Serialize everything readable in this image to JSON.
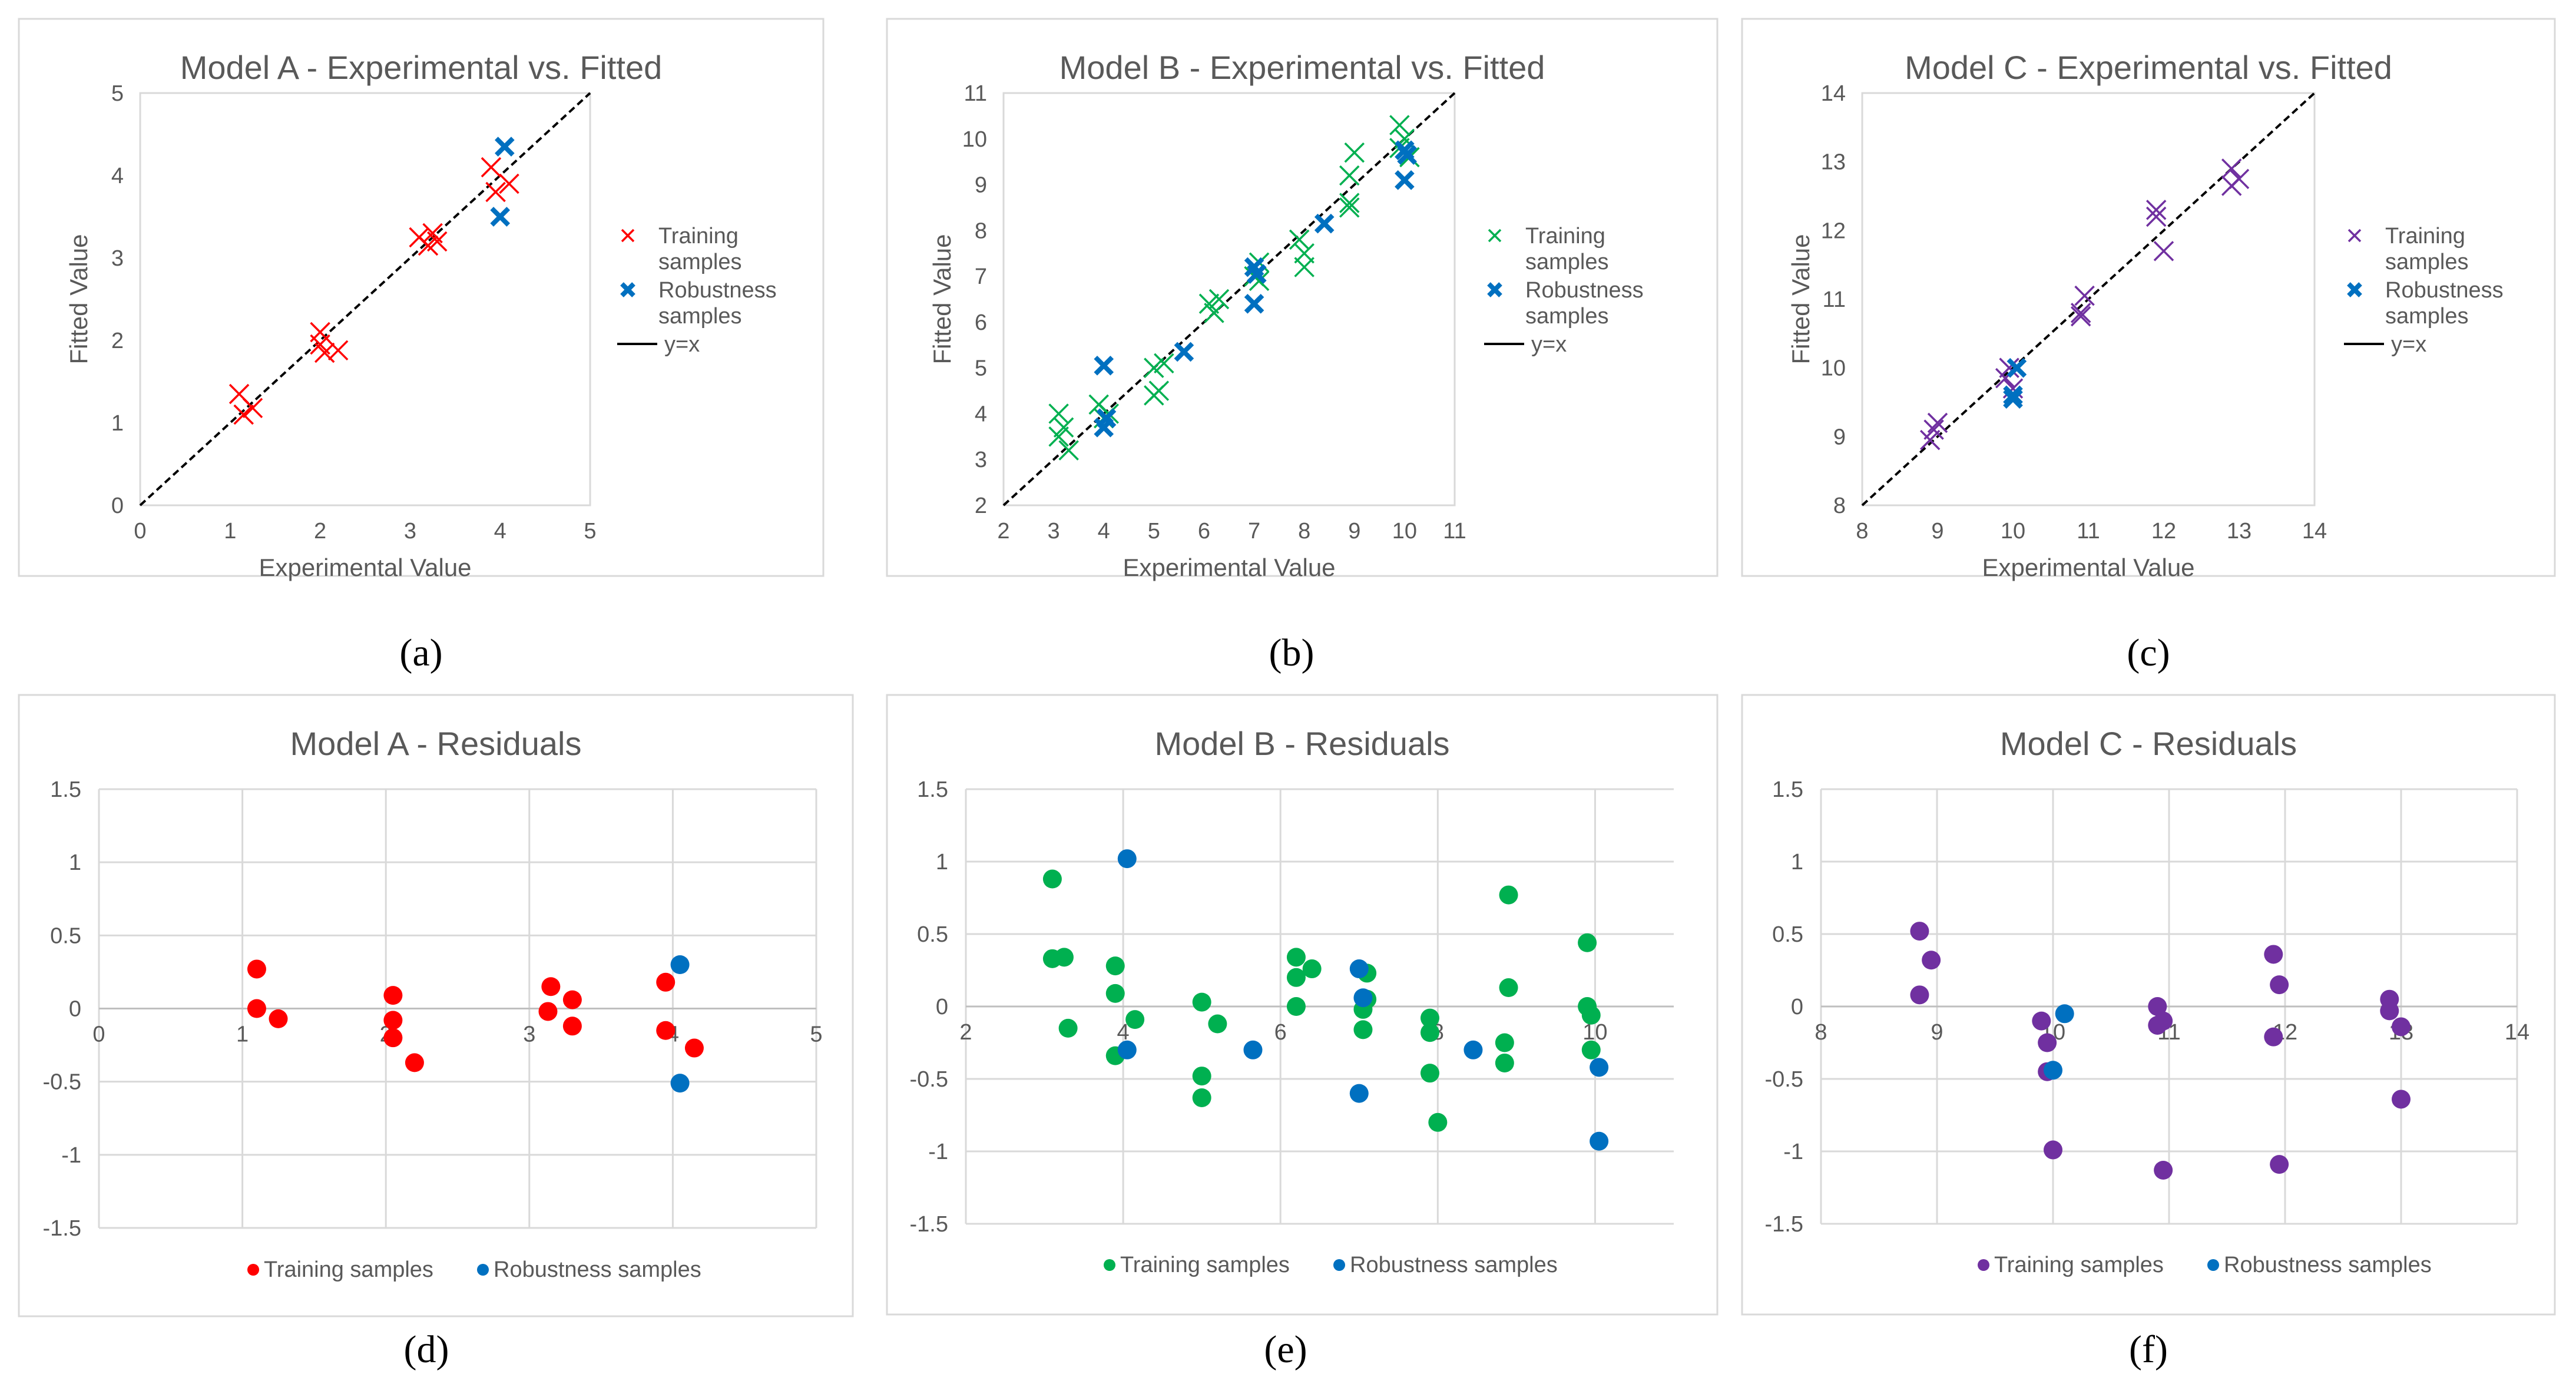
{
  "colors": {
    "model_a": "#FF0000",
    "model_b": "#00B050",
    "model_c": "#7030A0",
    "robustness": "#0070C0",
    "fit_line": "#000000",
    "text": "#595959",
    "grid": "#D9D9D9"
  },
  "chart_data": [
    {
      "id": "a",
      "panel_label": "(a)",
      "type": "scatter",
      "title": "Model A - Experimental vs. Fitted",
      "xlabel": "Experimental Value",
      "ylabel": "Fitted Value",
      "xlim": [
        0,
        5
      ],
      "ylim": [
        0,
        5
      ],
      "xticks": [
        0,
        1,
        2,
        3,
        4,
        5
      ],
      "yticks": [
        0,
        1,
        2,
        3,
        4,
        5
      ],
      "grid": false,
      "reference_line": "y=x",
      "legend": [
        "Training samples",
        "Robustness samples",
        "y=x"
      ],
      "legend_position": "right",
      "series": [
        {
          "name": "Training samples",
          "marker": "x",
          "color": "#FF0000",
          "points": [
            [
              1.1,
              1.35
            ],
            [
              1.15,
              1.1
            ],
            [
              1.25,
              1.18
            ],
            [
              2.0,
              2.1
            ],
            [
              2.05,
              1.85
            ],
            [
              2.0,
              1.95
            ],
            [
              2.2,
              1.88
            ],
            [
              3.1,
              3.25
            ],
            [
              3.2,
              3.15
            ],
            [
              3.25,
              3.3
            ],
            [
              3.3,
              3.2
            ],
            [
              3.9,
              4.1
            ],
            [
              3.95,
              3.8
            ],
            [
              4.1,
              3.9
            ]
          ]
        },
        {
          "name": "Robustness samples",
          "marker": "x-bold",
          "color": "#0070C0",
          "points": [
            [
              4.05,
              4.35
            ],
            [
              4.0,
              3.5
            ]
          ]
        }
      ]
    },
    {
      "id": "b",
      "panel_label": "(b)",
      "type": "scatter",
      "title": "Model B - Experimental vs. Fitted",
      "xlabel": "Experimental Value",
      "ylabel": "Fitted Value",
      "xlim": [
        2,
        11
      ],
      "ylim": [
        2,
        11
      ],
      "xticks": [
        2,
        3,
        4,
        5,
        6,
        7,
        8,
        9,
        10,
        11
      ],
      "yticks": [
        2,
        3,
        4,
        5,
        6,
        7,
        8,
        9,
        10,
        11
      ],
      "grid": false,
      "reference_line": "y=x",
      "legend": [
        "Training samples",
        "Robustness samples",
        "y=x"
      ],
      "legend_position": "right",
      "series": [
        {
          "name": "Training samples",
          "marker": "x",
          "color": "#00B050",
          "points": [
            [
              3.1,
              4.0
            ],
            [
              3.1,
              3.5
            ],
            [
              3.3,
              3.2
            ],
            [
              3.2,
              3.7
            ],
            [
              3.9,
              4.2
            ],
            [
              4.0,
              3.9
            ],
            [
              4.1,
              4.0
            ],
            [
              5.0,
              4.4
            ],
            [
              5.0,
              5.0
            ],
            [
              5.1,
              4.5
            ],
            [
              5.2,
              5.1
            ],
            [
              6.1,
              6.4
            ],
            [
              6.2,
              6.2
            ],
            [
              6.3,
              6.5
            ],
            [
              7.0,
              7.0
            ],
            [
              7.1,
              6.9
            ],
            [
              7.1,
              7.3
            ],
            [
              7.9,
              7.8
            ],
            [
              8.0,
              7.2
            ],
            [
              8.0,
              7.5
            ],
            [
              8.9,
              8.5
            ],
            [
              8.9,
              9.2
            ],
            [
              9.0,
              9.7
            ],
            [
              8.9,
              8.6
            ],
            [
              9.9,
              10.3
            ],
            [
              10.0,
              10.0
            ],
            [
              9.9,
              9.8
            ],
            [
              10.1,
              9.6
            ]
          ]
        },
        {
          "name": "Robustness samples",
          "marker": "x-bold",
          "color": "#0070C0",
          "points": [
            [
              4.0,
              5.05
            ],
            [
              4.0,
              3.7
            ],
            [
              4.05,
              3.9
            ],
            [
              5.6,
              5.35
            ],
            [
              7.0,
              7.2
            ],
            [
              7.0,
              6.4
            ],
            [
              7.05,
              7.05
            ],
            [
              8.4,
              8.15
            ],
            [
              10.0,
              9.75
            ],
            [
              10.0,
              9.1
            ],
            [
              10.05,
              9.65
            ]
          ]
        }
      ]
    },
    {
      "id": "c",
      "panel_label": "(c)",
      "type": "scatter",
      "title": "Model C - Experimental vs. Fitted",
      "xlabel": "Experimental Value",
      "ylabel": "Fitted Value",
      "xlim": [
        8,
        14
      ],
      "ylim": [
        8,
        14
      ],
      "xticks": [
        8,
        9,
        10,
        11,
        12,
        13,
        14
      ],
      "yticks": [
        8,
        9,
        10,
        11,
        12,
        13,
        14
      ],
      "grid": false,
      "reference_line": "y=x",
      "legend": [
        "Training samples",
        "Robustness samples",
        "y=x"
      ],
      "legend_position": "right",
      "series": [
        {
          "name": "Training samples",
          "marker": "x",
          "color": "#7030A0",
          "points": [
            [
              8.9,
              8.95
            ],
            [
              8.95,
              9.1
            ],
            [
              9.0,
              9.2
            ],
            [
              9.9,
              9.85
            ],
            [
              9.95,
              10.0
            ],
            [
              10.0,
              9.7
            ],
            [
              10.9,
              10.8
            ],
            [
              10.95,
              11.05
            ],
            [
              10.9,
              10.75
            ],
            [
              11.9,
              12.2
            ],
            [
              11.9,
              12.3
            ],
            [
              12.0,
              11.7
            ],
            [
              12.9,
              12.9
            ],
            [
              12.9,
              12.65
            ],
            [
              13.0,
              12.75
            ]
          ]
        },
        {
          "name": "Robustness samples",
          "marker": "x-bold",
          "color": "#0070C0",
          "points": [
            [
              10.0,
              9.6
            ],
            [
              10.05,
              10.0
            ],
            [
              10.0,
              9.55
            ]
          ]
        }
      ]
    },
    {
      "id": "d",
      "panel_label": "(d)",
      "type": "scatter",
      "title": "Model A - Residuals",
      "xlabel": "",
      "ylabel": "",
      "xlim": [
        0,
        5
      ],
      "ylim": [
        -1.5,
        1.5
      ],
      "xticks": [
        0,
        1,
        2,
        3,
        4,
        5
      ],
      "ytick_labels": [
        "1.5",
        "1",
        "0.5",
        "0",
        "-0.5",
        "-1",
        "-1.5"
      ],
      "yticks": [
        1.5,
        1,
        0.5,
        0,
        -0.5,
        -1,
        -1.5
      ],
      "grid": true,
      "legend": [
        "Training samples",
        "Robustness samples"
      ],
      "legend_position": "bottom",
      "series": [
        {
          "name": "Training samples",
          "marker": "circle",
          "color": "#FF0000",
          "points": [
            [
              1.1,
              0.27
            ],
            [
              1.1,
              0.0
            ],
            [
              1.25,
              -0.07
            ],
            [
              2.05,
              0.09
            ],
            [
              2.05,
              -0.08
            ],
            [
              2.05,
              -0.2
            ],
            [
              2.2,
              -0.37
            ],
            [
              3.15,
              0.15
            ],
            [
              3.13,
              -0.02
            ],
            [
              3.3,
              0.06
            ],
            [
              3.3,
              -0.12
            ],
            [
              3.95,
              0.18
            ],
            [
              3.95,
              -0.15
            ],
            [
              4.15,
              -0.27
            ]
          ]
        },
        {
          "name": "Robustness samples",
          "marker": "circle",
          "color": "#0070C0",
          "points": [
            [
              4.05,
              0.3
            ],
            [
              4.05,
              -0.51
            ]
          ]
        }
      ]
    },
    {
      "id": "e",
      "panel_label": "(e)",
      "type": "scatter",
      "title": "Model B - Residuals",
      "xlabel": "",
      "ylabel": "",
      "xlim": [
        2,
        11
      ],
      "ylim": [
        -1.5,
        1.5
      ],
      "xticks": [
        2,
        4,
        6,
        8,
        10
      ],
      "ytick_labels": [
        "1.5",
        "1",
        "0.5",
        "0",
        "-0.5",
        "-1",
        "-1.5"
      ],
      "yticks": [
        1.5,
        1,
        0.5,
        0,
        -0.5,
        -1,
        -1.5
      ],
      "grid": true,
      "legend": [
        "Training samples",
        "Robustness samples"
      ],
      "legend_position": "bottom",
      "series": [
        {
          "name": "Training samples",
          "marker": "circle",
          "color": "#00B050",
          "points": [
            [
              3.1,
              0.88
            ],
            [
              3.1,
              0.33
            ],
            [
              3.25,
              0.34
            ],
            [
              3.3,
              -0.15
            ],
            [
              3.9,
              0.28
            ],
            [
              3.9,
              0.09
            ],
            [
              3.9,
              -0.34
            ],
            [
              4.15,
              -0.09
            ],
            [
              5.0,
              0.03
            ],
            [
              5.0,
              -0.48
            ],
            [
              5.0,
              -0.63
            ],
            [
              5.2,
              -0.12
            ],
            [
              6.2,
              0.34
            ],
            [
              6.2,
              0.2
            ],
            [
              6.2,
              0.0
            ],
            [
              6.4,
              0.26
            ],
            [
              7.1,
              0.23
            ],
            [
              7.1,
              0.05
            ],
            [
              7.05,
              -0.02
            ],
            [
              7.05,
              -0.16
            ],
            [
              7.9,
              -0.08
            ],
            [
              7.9,
              -0.18
            ],
            [
              7.9,
              -0.46
            ],
            [
              8.0,
              -0.8
            ],
            [
              8.9,
              0.77
            ],
            [
              8.9,
              0.13
            ],
            [
              8.85,
              -0.25
            ],
            [
              8.85,
              -0.39
            ],
            [
              9.9,
              0.44
            ],
            [
              9.9,
              0.0
            ],
            [
              9.95,
              -0.06
            ],
            [
              9.95,
              -0.3
            ]
          ]
        },
        {
          "name": "Robustness samples",
          "marker": "circle",
          "color": "#0070C0",
          "points": [
            [
              4.05,
              1.02
            ],
            [
              4.05,
              -0.3
            ],
            [
              5.65,
              -0.3
            ],
            [
              7.0,
              0.26
            ],
            [
              7.05,
              0.06
            ],
            [
              7.0,
              -0.6
            ],
            [
              8.45,
              -0.3
            ],
            [
              10.05,
              -0.42
            ],
            [
              10.05,
              -0.93
            ]
          ]
        }
      ]
    },
    {
      "id": "f",
      "panel_label": "(f)",
      "type": "scatter",
      "title": "Model C - Residuals",
      "xlabel": "",
      "ylabel": "",
      "xlim": [
        8,
        14
      ],
      "ylim": [
        -1.5,
        1.5
      ],
      "xticks": [
        8,
        9,
        10,
        11,
        12,
        13,
        14
      ],
      "ytick_labels": [
        "1.5",
        "1",
        "0.5",
        "0",
        "-0.5",
        "-1",
        "-1.5"
      ],
      "yticks": [
        1.5,
        1,
        0.5,
        0,
        -0.5,
        -1,
        -1.5
      ],
      "grid": true,
      "legend": [
        "Training samples",
        "Robustness samples"
      ],
      "legend_position": "bottom",
      "series": [
        {
          "name": "Training samples",
          "marker": "circle",
          "color": "#7030A0",
          "points": [
            [
              8.85,
              0.52
            ],
            [
              8.95,
              0.32
            ],
            [
              8.85,
              0.08
            ],
            [
              9.9,
              -0.1
            ],
            [
              9.95,
              -0.25
            ],
            [
              9.95,
              -0.45
            ],
            [
              10.0,
              -0.99
            ],
            [
              10.9,
              0.0
            ],
            [
              10.95,
              -0.1
            ],
            [
              10.9,
              -0.13
            ],
            [
              10.95,
              -1.13
            ],
            [
              11.9,
              0.36
            ],
            [
              11.95,
              0.15
            ],
            [
              11.9,
              -0.21
            ],
            [
              11.95,
              -1.09
            ],
            [
              12.9,
              0.05
            ],
            [
              12.9,
              -0.03
            ],
            [
              13.0,
              -0.14
            ],
            [
              13.0,
              -0.64
            ]
          ]
        },
        {
          "name": "Robustness samples",
          "marker": "circle",
          "color": "#0070C0",
          "points": [
            [
              10.1,
              -0.05
            ],
            [
              10.0,
              -0.44
            ]
          ]
        }
      ]
    }
  ]
}
